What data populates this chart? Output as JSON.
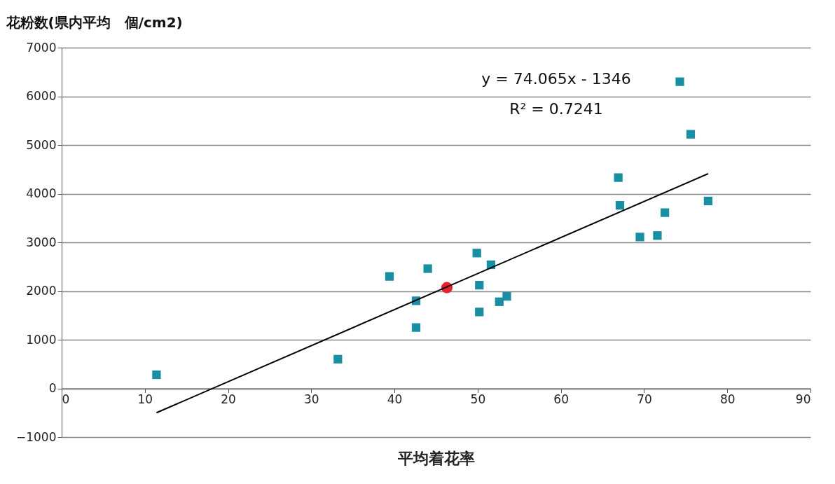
{
  "chart_data": {
    "type": "scatter",
    "ylabel": "花粉数(県内平均　個/cm2)",
    "xlabel": "平均着花率",
    "xlim": [
      0,
      90
    ],
    "xticks": [
      0,
      10,
      20,
      30,
      40,
      50,
      60,
      70,
      80,
      90
    ],
    "ylim": [
      -1000,
      7000
    ],
    "yticks": [
      -1000,
      0,
      1000,
      2000,
      3000,
      4000,
      5000,
      6000,
      7000
    ],
    "grid": "y",
    "annotations": [
      "y = 74.065x - 1346",
      "R² = 0.7241"
    ],
    "series": [
      {
        "type": "scatter",
        "marker": "square",
        "color": "#1a8fa3",
        "x": [
          11.4,
          33.2,
          39.4,
          42.6,
          42.6,
          44.0,
          49.9,
          50.2,
          50.2,
          51.6,
          52.6,
          53.5,
          66.9,
          67.1,
          69.5,
          71.6,
          72.5,
          74.3,
          75.6,
          77.7
        ],
        "values": [
          280,
          600,
          2300,
          1800,
          1250,
          2460,
          2780,
          2120,
          1570,
          2540,
          1780,
          1890,
          4330,
          3760,
          3110,
          3140,
          3610,
          6300,
          5220,
          3850
        ]
      },
      {
        "type": "scatter",
        "marker": "circle",
        "color": "#e8202a",
        "x": [
          46.3
        ],
        "values": [
          2070
        ]
      },
      {
        "type": "line",
        "color": "#000000",
        "x": [
          11.4,
          77.7
        ],
        "values": [
          -500,
          4410
        ]
      }
    ]
  }
}
